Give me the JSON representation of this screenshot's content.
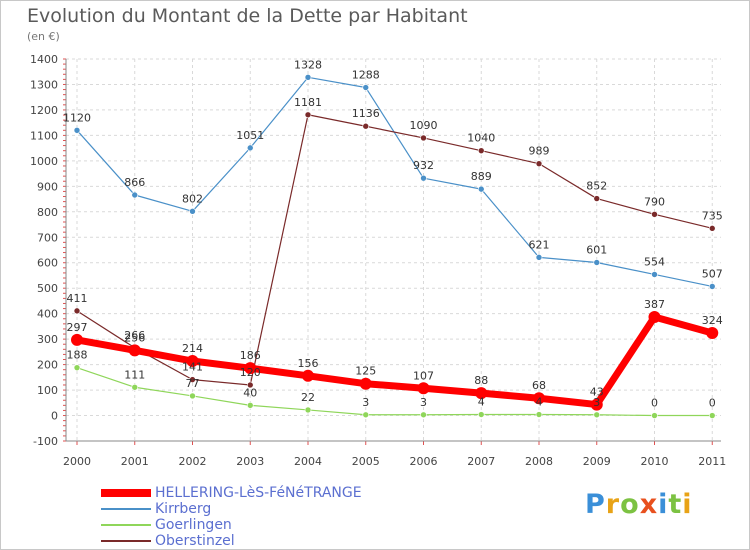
{
  "title": "Evolution du Montant de la Dette par Habitant",
  "subtitle": "(en €)",
  "logo": "Proxiti",
  "chart_data": {
    "type": "line",
    "x": [
      "2000",
      "2001",
      "2002",
      "2003",
      "2004",
      "2005",
      "2006",
      "2007",
      "2008",
      "2009",
      "2010",
      "2011"
    ],
    "ylim": [
      -100,
      1400
    ],
    "yticks": [
      -100,
      0,
      100,
      200,
      300,
      400,
      500,
      600,
      700,
      800,
      900,
      1000,
      1100,
      1200,
      1300,
      1400
    ],
    "grid": true,
    "legend": "bottom-left",
    "series": [
      {
        "name": "HELLERING-LèS-FéNéTRANGE",
        "color": "#ff0000",
        "values": [
          297,
          256,
          214,
          186,
          156,
          125,
          107,
          88,
          68,
          43,
          387,
          324
        ]
      },
      {
        "name": "Kirrberg",
        "color": "#4a90c8",
        "values": [
          1120,
          866,
          802,
          1051,
          1328,
          1288,
          932,
          889,
          621,
          601,
          554,
          507
        ]
      },
      {
        "name": "Goerlingen",
        "color": "#8fd65a",
        "values": [
          188,
          111,
          77,
          40,
          22,
          3,
          3,
          4,
          4,
          3,
          0,
          0
        ]
      },
      {
        "name": "Oberstinzel",
        "color": "#7a2a2a",
        "values": [
          411,
          266,
          141,
          120,
          1181,
          1136,
          1090,
          1040,
          989,
          852,
          790,
          735
        ]
      }
    ]
  }
}
